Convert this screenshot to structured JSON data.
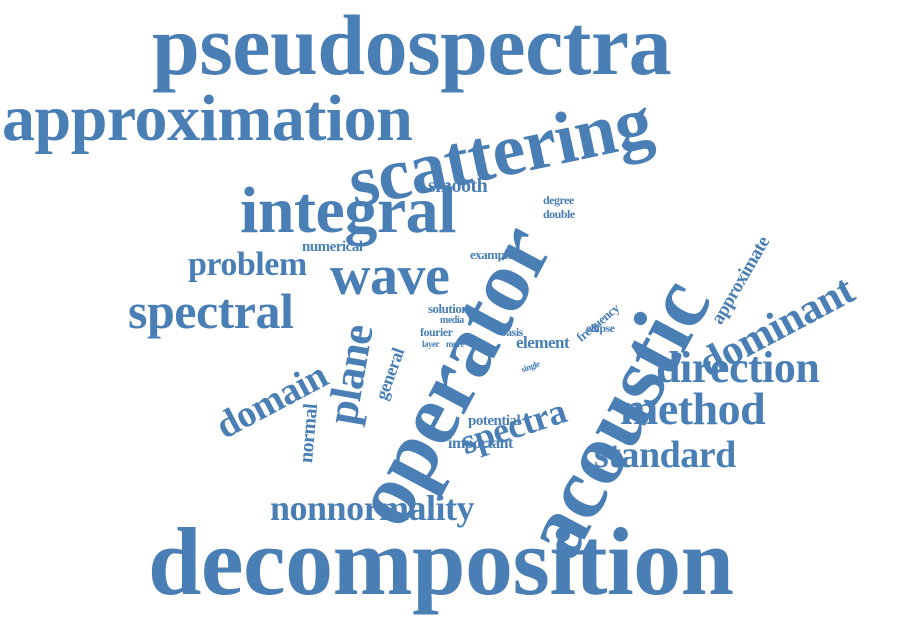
{
  "color": "#4a7fb5",
  "words": [
    {
      "id": "pseudospectra",
      "text": "pseudospectra"
    },
    {
      "id": "approximation",
      "text": "approximation"
    },
    {
      "id": "scattering",
      "text": "scattering"
    },
    {
      "id": "integral",
      "text": "integral"
    },
    {
      "id": "smooth",
      "text": "smooth"
    },
    {
      "id": "degree",
      "text": "degree"
    },
    {
      "id": "double",
      "text": "double"
    },
    {
      "id": "acoustic",
      "text": "acoustic"
    },
    {
      "id": "operator",
      "text": "operator"
    },
    {
      "id": "approximate",
      "text": "approximate"
    },
    {
      "id": "dominant",
      "text": "dominant"
    },
    {
      "id": "numerical",
      "text": "numerical"
    },
    {
      "id": "example",
      "text": "example"
    },
    {
      "id": "problem",
      "text": "problem"
    },
    {
      "id": "wave",
      "text": "wave"
    },
    {
      "id": "frequency",
      "text": "frequency"
    },
    {
      "id": "spectral",
      "text": "spectral"
    },
    {
      "id": "solution",
      "text": "solution"
    },
    {
      "id": "media",
      "text": "media"
    },
    {
      "id": "fourier",
      "text": "fourier"
    },
    {
      "id": "basis",
      "text": "basis"
    },
    {
      "id": "ellipse",
      "text": "ellipse"
    },
    {
      "id": "layer",
      "text": "layer"
    },
    {
      "id": "more",
      "text": "more"
    },
    {
      "id": "element",
      "text": "element"
    },
    {
      "id": "domain",
      "text": "domain"
    },
    {
      "id": "plane",
      "text": "plane"
    },
    {
      "id": "general",
      "text": "general"
    },
    {
      "id": "single",
      "text": "single"
    },
    {
      "id": "direction",
      "text": "direction"
    },
    {
      "id": "spectra",
      "text": "spectra"
    },
    {
      "id": "normal",
      "text": "normal"
    },
    {
      "id": "method",
      "text": "method"
    },
    {
      "id": "potential",
      "text": "potential"
    },
    {
      "id": "important",
      "text": "important"
    },
    {
      "id": "standard",
      "text": "standard"
    },
    {
      "id": "nonnormality",
      "text": "nonnormality"
    },
    {
      "id": "decomposition",
      "text": "decomposition"
    }
  ]
}
